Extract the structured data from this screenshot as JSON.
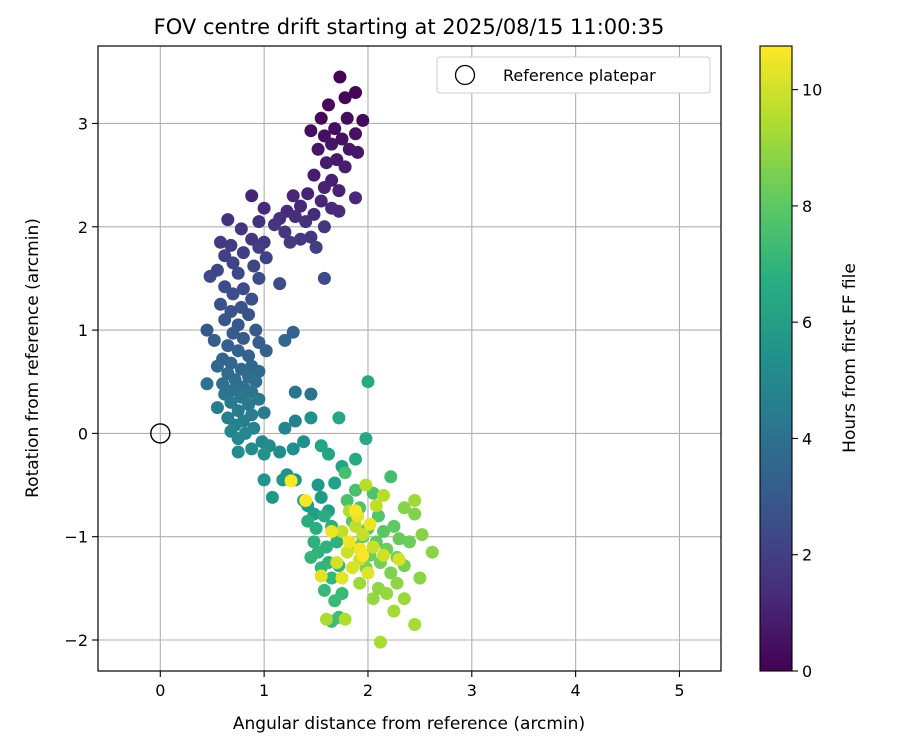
{
  "chart_data": {
    "type": "scatter",
    "title": "FOV centre drift starting at 2025/08/15 11:00:35",
    "xlabel": "Angular distance from reference (arcmin)",
    "ylabel": "Rotation from reference (arcmin)",
    "xlim": [
      -0.6,
      5.4
    ],
    "ylim": [
      -2.3,
      3.75
    ],
    "xticks": [
      0,
      1,
      2,
      3,
      4,
      5
    ],
    "yticks": [
      -2,
      -1,
      0,
      1,
      2,
      3
    ],
    "x_tick_labels": [
      "0",
      "1",
      "2",
      "3",
      "4",
      "5"
    ],
    "y_tick_labels": [
      "−2",
      "−1",
      "0",
      "1",
      "2",
      "3"
    ],
    "grid": true,
    "legend": {
      "entries": [
        "Reference platepar"
      ],
      "position": "top-right"
    },
    "reference_point": {
      "name": "Reference platepar",
      "x": 0,
      "y": 0,
      "marker": "open-circle"
    },
    "colorbar": {
      "label": "Hours from first FF file",
      "colormap": "viridis",
      "range": [
        0,
        10.75
      ],
      "ticks": [
        0,
        2,
        4,
        6,
        8,
        10
      ],
      "tick_labels": [
        "0",
        "2",
        "4",
        "6",
        "8",
        "10"
      ]
    },
    "points": [
      [
        1.73,
        3.45,
        0.1
      ],
      [
        1.88,
        3.3,
        0.1
      ],
      [
        1.78,
        3.25,
        0.15
      ],
      [
        1.62,
        3.18,
        0.2
      ],
      [
        1.55,
        3.05,
        0.2
      ],
      [
        1.95,
        3.03,
        0.25
      ],
      [
        1.8,
        3.05,
        0.3
      ],
      [
        1.68,
        2.95,
        0.35
      ],
      [
        1.45,
        2.93,
        0.4
      ],
      [
        1.58,
        2.88,
        0.45
      ],
      [
        1.75,
        2.85,
        0.5
      ],
      [
        1.88,
        2.9,
        0.5
      ],
      [
        1.65,
        2.8,
        0.6
      ],
      [
        1.82,
        2.75,
        0.6
      ],
      [
        1.52,
        2.75,
        0.65
      ],
      [
        1.9,
        2.72,
        0.7
      ],
      [
        1.7,
        2.65,
        0.75
      ],
      [
        1.6,
        2.62,
        0.8
      ],
      [
        1.78,
        2.58,
        0.85
      ],
      [
        1.48,
        2.5,
        0.9
      ],
      [
        1.65,
        2.45,
        0.95
      ],
      [
        1.58,
        2.38,
        1.0
      ],
      [
        1.72,
        2.35,
        1.0
      ],
      [
        1.42,
        2.32,
        1.05
      ],
      [
        1.28,
        2.3,
        1.1
      ],
      [
        0.88,
        2.3,
        1.1
      ],
      [
        1.55,
        2.25,
        1.15
      ],
      [
        1.88,
        2.28,
        1.2
      ],
      [
        1.35,
        2.2,
        1.2
      ],
      [
        1.65,
        2.18,
        1.25
      ],
      [
        1.22,
        2.15,
        1.3
      ],
      [
        1.0,
        2.18,
        1.3
      ],
      [
        1.48,
        2.12,
        1.35
      ],
      [
        1.72,
        2.15,
        1.35
      ],
      [
        1.3,
        2.1,
        1.4
      ],
      [
        1.15,
        2.08,
        1.45
      ],
      [
        0.95,
        2.05,
        1.5
      ],
      [
        0.65,
        2.07,
        1.5
      ],
      [
        1.4,
        2.05,
        1.55
      ],
      [
        1.1,
        2.02,
        1.6
      ],
      [
        1.58,
        2.0,
        1.6
      ],
      [
        0.78,
        1.98,
        1.65
      ],
      [
        1.2,
        1.95,
        1.7
      ],
      [
        1.45,
        1.9,
        1.7
      ],
      [
        0.88,
        1.88,
        1.75
      ],
      [
        1.35,
        1.88,
        1.8
      ],
      [
        1.0,
        1.85,
        1.8
      ],
      [
        0.58,
        1.85,
        1.85
      ],
      [
        0.68,
        1.82,
        1.9
      ],
      [
        1.25,
        1.85,
        1.9
      ],
      [
        0.95,
        1.8,
        1.95
      ],
      [
        1.5,
        1.8,
        2.0
      ],
      [
        0.8,
        1.75,
        2.0
      ],
      [
        0.62,
        1.72,
        2.05
      ],
      [
        1.02,
        1.7,
        2.1
      ],
      [
        0.7,
        1.65,
        2.15
      ],
      [
        0.9,
        1.62,
        2.2
      ],
      [
        0.55,
        1.58,
        2.25
      ],
      [
        0.75,
        1.55,
        2.3
      ],
      [
        0.48,
        1.52,
        2.3
      ],
      [
        1.58,
        1.5,
        2.35
      ],
      [
        0.95,
        1.5,
        2.4
      ],
      [
        1.15,
        1.45,
        2.45
      ],
      [
        0.62,
        1.42,
        2.5
      ],
      [
        0.8,
        1.4,
        2.5
      ],
      [
        0.7,
        1.35,
        2.55
      ],
      [
        0.88,
        1.3,
        2.6
      ],
      [
        0.58,
        1.25,
        2.65
      ],
      [
        0.78,
        1.22,
        2.7
      ],
      [
        0.68,
        1.18,
        2.75
      ],
      [
        0.85,
        1.15,
        2.8
      ],
      [
        0.62,
        1.1,
        2.85
      ],
      [
        0.75,
        1.05,
        2.9
      ],
      [
        0.45,
        1.0,
        2.95
      ],
      [
        0.92,
        1.0,
        3.0
      ],
      [
        0.7,
        0.97,
        3.05
      ],
      [
        0.8,
        0.92,
        3.1
      ],
      [
        0.52,
        0.9,
        3.15
      ],
      [
        0.95,
        0.88,
        3.2
      ],
      [
        0.65,
        0.85,
        3.25
      ],
      [
        0.75,
        0.8,
        3.3
      ],
      [
        1.02,
        0.8,
        3.35
      ],
      [
        0.85,
        0.75,
        3.4
      ],
      [
        0.6,
        0.72,
        3.45
      ],
      [
        1.28,
        0.98,
        3.4
      ],
      [
        1.2,
        0.9,
        3.5
      ],
      [
        0.68,
        0.68,
        3.5
      ],
      [
        0.88,
        0.65,
        3.55
      ],
      [
        0.55,
        0.65,
        3.6
      ],
      [
        0.78,
        0.62,
        3.65
      ],
      [
        0.95,
        0.6,
        3.7
      ],
      [
        0.65,
        0.58,
        3.75
      ],
      [
        0.85,
        0.55,
        3.8
      ],
      [
        0.72,
        0.52,
        3.85
      ],
      [
        0.92,
        0.5,
        3.9
      ],
      [
        0.6,
        0.48,
        3.95
      ],
      [
        0.8,
        0.45,
        4.0
      ],
      [
        0.45,
        0.48,
        4.0
      ],
      [
        0.7,
        0.42,
        4.05
      ],
      [
        0.88,
        0.4,
        4.1
      ],
      [
        1.3,
        0.4,
        4.1
      ],
      [
        1.45,
        0.38,
        4.15
      ],
      [
        0.62,
        0.38,
        4.2
      ],
      [
        0.78,
        0.35,
        4.25
      ],
      [
        0.95,
        0.33,
        4.3
      ],
      [
        0.68,
        0.3,
        4.35
      ],
      [
        0.85,
        0.28,
        4.4
      ],
      [
        0.55,
        0.25,
        4.45
      ],
      [
        0.75,
        0.22,
        4.5
      ],
      [
        1.0,
        0.2,
        4.5
      ],
      [
        0.88,
        0.18,
        4.55
      ],
      [
        0.65,
        0.15,
        4.6
      ],
      [
        0.8,
        0.12,
        4.65
      ],
      [
        1.3,
        0.12,
        4.7
      ],
      [
        0.72,
        0.08,
        4.75
      ],
      [
        0.9,
        0.05,
        4.8
      ],
      [
        1.2,
        0.05,
        4.85
      ],
      [
        0.68,
        0.02,
        4.9
      ],
      [
        0.82,
        0.0,
        4.95
      ],
      [
        0.75,
        -0.05,
        5.0
      ],
      [
        0.98,
        -0.08,
        5.05
      ],
      [
        1.05,
        -0.12,
        5.1
      ],
      [
        0.88,
        -0.15,
        5.15
      ],
      [
        0.75,
        -0.18,
        5.2
      ],
      [
        1.15,
        -0.18,
        5.25
      ],
      [
        1.28,
        -0.15,
        5.3
      ],
      [
        1.38,
        -0.08,
        5.35
      ],
      [
        1.45,
        0.15,
        5.4
      ],
      [
        1.0,
        -0.2,
        5.45
      ],
      [
        1.22,
        -0.4,
        5.5
      ],
      [
        1.0,
        -0.45,
        5.55
      ],
      [
        1.3,
        -0.45,
        5.6
      ],
      [
        1.18,
        -0.45,
        5.65
      ],
      [
        1.08,
        -0.62,
        5.7
      ],
      [
        1.52,
        -0.5,
        5.75
      ],
      [
        1.42,
        -0.7,
        5.8
      ],
      [
        1.38,
        -0.65,
        5.85
      ],
      [
        1.55,
        -0.62,
        5.9
      ],
      [
        1.48,
        -0.78,
        6.0
      ],
      [
        1.62,
        -0.75,
        6.05
      ],
      [
        1.68,
        -0.48,
        6.1
      ],
      [
        1.75,
        -0.32,
        6.2
      ],
      [
        1.62,
        -0.2,
        6.25
      ],
      [
        1.55,
        -0.12,
        6.3
      ],
      [
        1.72,
        0.15,
        6.35
      ],
      [
        1.98,
        -0.05,
        6.4
      ],
      [
        2.0,
        0.5,
        6.5
      ],
      [
        1.88,
        -0.25,
        6.55
      ],
      [
        1.58,
        -0.8,
        6.6
      ],
      [
        1.42,
        -0.85,
        6.65
      ],
      [
        1.5,
        -0.92,
        6.7
      ],
      [
        1.65,
        -0.9,
        6.75
      ],
      [
        1.48,
        -1.05,
        6.8
      ],
      [
        1.6,
        -1.1,
        6.85
      ],
      [
        1.52,
        -1.15,
        6.9
      ],
      [
        1.7,
        -1.05,
        6.95
      ],
      [
        1.45,
        -1.2,
        7.0
      ],
      [
        1.62,
        -1.25,
        7.0
      ],
      [
        1.55,
        -1.3,
        7.05
      ],
      [
        1.72,
        -1.28,
        7.1
      ],
      [
        1.65,
        -1.4,
        7.15
      ],
      [
        1.58,
        -1.52,
        7.2
      ],
      [
        1.75,
        -1.55,
        7.25
      ],
      [
        1.68,
        -1.62,
        7.3
      ],
      [
        1.72,
        -1.78,
        7.35
      ],
      [
        1.65,
        -1.82,
        7.4
      ],
      [
        2.22,
        -0.42,
        7.5
      ],
      [
        1.78,
        -0.38,
        7.55
      ],
      [
        1.88,
        -0.55,
        7.6
      ],
      [
        1.8,
        -0.65,
        7.65
      ],
      [
        2.05,
        -0.58,
        7.7
      ],
      [
        1.92,
        -0.72,
        7.75
      ],
      [
        2.1,
        -0.8,
        7.8
      ],
      [
        1.85,
        -0.85,
        7.85
      ],
      [
        2.0,
        -0.92,
        7.9
      ],
      [
        2.15,
        -0.95,
        7.95
      ],
      [
        1.95,
        -1.0,
        8.0
      ],
      [
        2.25,
        -0.9,
        8.05
      ],
      [
        2.08,
        -1.05,
        8.1
      ],
      [
        1.9,
        -1.1,
        8.15
      ],
      [
        2.3,
        -1.02,
        8.2
      ],
      [
        2.18,
        -1.12,
        8.25
      ],
      [
        2.4,
        -1.05,
        8.3
      ],
      [
        2.02,
        -1.18,
        8.35
      ],
      [
        2.28,
        -1.2,
        8.4
      ],
      [
        2.12,
        -1.25,
        8.45
      ],
      [
        2.35,
        -1.28,
        8.5
      ],
      [
        1.98,
        -1.3,
        8.55
      ],
      [
        2.22,
        -1.35,
        8.6
      ],
      [
        2.45,
        -0.78,
        8.65
      ],
      [
        2.35,
        -0.72,
        8.7
      ],
      [
        2.52,
        -0.98,
        8.75
      ],
      [
        2.62,
        -1.15,
        8.8
      ],
      [
        2.5,
        -1.4,
        8.85
      ],
      [
        2.28,
        -1.45,
        8.9
      ],
      [
        2.1,
        -1.5,
        8.95
      ],
      [
        2.05,
        -1.6,
        9.0
      ],
      [
        2.18,
        -1.55,
        9.05
      ],
      [
        2.35,
        -1.6,
        9.1
      ],
      [
        1.92,
        -1.45,
        9.15
      ],
      [
        2.45,
        -0.65,
        9.2
      ],
      [
        2.25,
        -1.72,
        9.25
      ],
      [
        2.45,
        -1.85,
        9.3
      ],
      [
        2.12,
        -2.02,
        9.35
      ],
      [
        1.6,
        -1.8,
        9.4
      ],
      [
        1.78,
        -1.8,
        9.45
      ],
      [
        1.82,
        -0.75,
        9.5
      ],
      [
        1.98,
        -0.5,
        9.55
      ],
      [
        2.15,
        -0.6,
        9.6
      ],
      [
        1.88,
        -0.9,
        9.65
      ],
      [
        2.08,
        -0.7,
        9.7
      ],
      [
        1.75,
        -0.95,
        9.75
      ],
      [
        1.95,
        -0.98,
        9.8
      ],
      [
        2.05,
        -1.1,
        9.85
      ],
      [
        1.8,
        -1.15,
        9.9
      ],
      [
        1.92,
        -1.22,
        9.95
      ],
      [
        2.15,
        -1.18,
        10.0
      ],
      [
        1.7,
        -1.25,
        10.05
      ],
      [
        2.3,
        -1.22,
        10.1
      ],
      [
        1.85,
        -1.3,
        10.15
      ],
      [
        2.0,
        -1.35,
        10.2
      ],
      [
        1.55,
        -1.38,
        10.25
      ],
      [
        1.75,
        -1.4,
        10.3
      ],
      [
        1.9,
        -0.8,
        10.35
      ],
      [
        1.65,
        -0.95,
        10.4
      ],
      [
        2.02,
        -0.88,
        10.45
      ],
      [
        1.82,
        -1.05,
        10.5
      ],
      [
        1.92,
        -1.12,
        10.55
      ],
      [
        1.88,
        -0.75,
        10.6
      ],
      [
        1.95,
        -1.18,
        10.65
      ],
      [
        1.4,
        -0.65,
        10.7
      ],
      [
        1.26,
        -0.46,
        10.7
      ]
    ]
  }
}
